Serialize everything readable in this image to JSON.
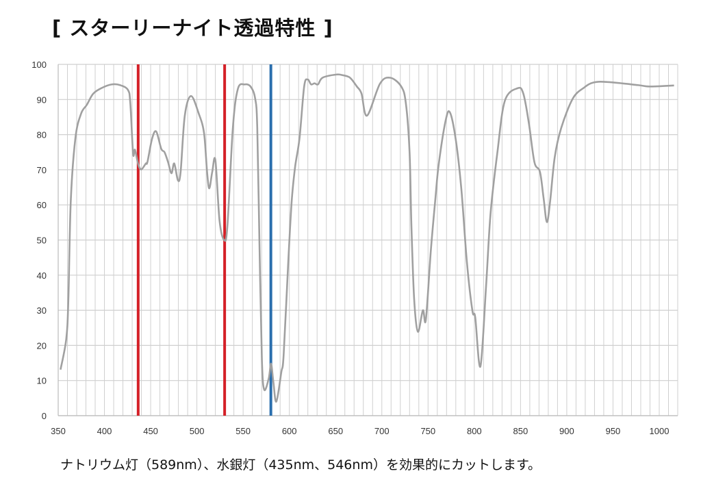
{
  "title": "[ スターリーナイト透過特性 ]",
  "caption": "ナトリウム灯（589nm）、水銀灯（435nm、546nm）を効果的にカットします。",
  "chart_data": {
    "type": "line",
    "title": "[ スターリーナイト透過特性 ]",
    "xlabel": "",
    "ylabel": "",
    "xlim": [
      350,
      1020
    ],
    "ylim": [
      0,
      100
    ],
    "grid": true,
    "x_major_step": 10,
    "x_ticks": [
      350,
      400,
      450,
      500,
      550,
      600,
      650,
      700,
      750,
      800,
      850,
      900,
      950,
      1000
    ],
    "y_ticks": [
      0,
      10,
      20,
      30,
      40,
      50,
      60,
      70,
      80,
      90,
      100
    ],
    "colors": {
      "curve": "#a0a0a0",
      "grid": "#cfcfcf",
      "mercury": "#d42027",
      "sodium": "#2a6ead"
    },
    "markers": [
      {
        "name": "mercury-line-435",
        "x": 436.5,
        "color": "#d42027"
      },
      {
        "name": "mercury-line-546",
        "x": 530,
        "color": "#d42027"
      },
      {
        "name": "sodium-line-589",
        "x": 580,
        "color": "#2a6ead"
      }
    ],
    "series": [
      {
        "name": "transmittance",
        "points": [
          [
            352.5,
            13.1
          ],
          [
            358.7,
            21.8
          ],
          [
            361,
            33
          ],
          [
            363.6,
            61
          ],
          [
            368.6,
            79
          ],
          [
            374.8,
            86
          ],
          [
            381,
            88.5
          ],
          [
            388,
            91.7
          ],
          [
            398,
            93.4
          ],
          [
            408,
            94.3
          ],
          [
            416.8,
            94.1
          ],
          [
            425.5,
            92.7
          ],
          [
            428,
            88.9
          ],
          [
            431,
            74.6
          ],
          [
            433,
            75.7
          ],
          [
            436.6,
            71.5
          ],
          [
            439.9,
            70.1
          ],
          [
            444.8,
            71.8
          ],
          [
            446.5,
            72.2
          ],
          [
            451.5,
            78.8
          ],
          [
            456,
            80.9
          ],
          [
            461.4,
            76
          ],
          [
            465,
            75
          ],
          [
            468.8,
            72.2
          ],
          [
            472.5,
            69
          ],
          [
            475.5,
            71.8
          ],
          [
            479.5,
            67
          ],
          [
            482.4,
            69.4
          ],
          [
            486.9,
            85.4
          ],
          [
            493.6,
            91
          ],
          [
            502,
            86
          ],
          [
            507.7,
            80.5
          ],
          [
            511,
            69.4
          ],
          [
            513.4,
            64.7
          ],
          [
            516.6,
            69.4
          ],
          [
            520,
            72.7
          ],
          [
            524.5,
            55.5
          ],
          [
            529.5,
            50
          ],
          [
            533,
            54
          ],
          [
            538.9,
            81.9
          ],
          [
            544.3,
            93
          ],
          [
            551.7,
            94.3
          ],
          [
            558,
            93.7
          ],
          [
            563,
            90.3
          ],
          [
            565.3,
            81.9
          ],
          [
            567.8,
            47
          ],
          [
            570.3,
            15.9
          ],
          [
            572.8,
            7.4
          ],
          [
            577.7,
            10.6
          ],
          [
            580.2,
            14.8
          ],
          [
            582.7,
            9.6
          ],
          [
            585.9,
            4
          ],
          [
            591.3,
            12.4
          ],
          [
            593.8,
            17.2
          ],
          [
            598.8,
            43.7
          ],
          [
            602.5,
            61
          ],
          [
            606.2,
            70.8
          ],
          [
            611,
            79
          ],
          [
            616,
            93.7
          ],
          [
            619.8,
            95.7
          ],
          [
            623.5,
            94.3
          ],
          [
            627.2,
            94.6
          ],
          [
            631,
            94.3
          ],
          [
            635.9,
            96.2
          ],
          [
            650.7,
            97.1
          ],
          [
            658,
            96.9
          ],
          [
            665.6,
            96.2
          ],
          [
            673,
            93.7
          ],
          [
            678,
            91.7
          ],
          [
            684,
            85.4
          ],
          [
            698,
            94.5
          ],
          [
            709,
            96.2
          ],
          [
            721,
            93.7
          ],
          [
            726,
            88.9
          ],
          [
            730,
            75
          ],
          [
            732,
            54
          ],
          [
            735,
            33
          ],
          [
            739,
            23.9
          ],
          [
            744.4,
            30
          ],
          [
            747.6,
            27.3
          ],
          [
            753,
            47
          ],
          [
            758,
            62
          ],
          [
            761.5,
            71.5
          ],
          [
            769,
            84
          ],
          [
            773.7,
            86.3
          ],
          [
            780,
            78.5
          ],
          [
            786,
            64.5
          ],
          [
            792,
            43.7
          ],
          [
            798,
            29.8
          ],
          [
            801,
            28
          ],
          [
            806.6,
            14
          ],
          [
            812.7,
            36.7
          ],
          [
            817.6,
            57.6
          ],
          [
            825,
            75
          ],
          [
            833,
            89.6
          ],
          [
            846.8,
            93.2
          ],
          [
            853,
            91.7
          ],
          [
            859,
            83.3
          ],
          [
            865,
            72.2
          ],
          [
            871,
            69.4
          ],
          [
            875,
            61.8
          ],
          [
            878.5,
            55.1
          ],
          [
            882,
            61
          ],
          [
            887,
            73.6
          ],
          [
            894,
            81.9
          ],
          [
            906.6,
            90.3
          ],
          [
            918.8,
            93.4
          ],
          [
            928.5,
            94.8
          ],
          [
            943,
            95
          ],
          [
            977,
            94.1
          ],
          [
            989.5,
            93.7
          ],
          [
            1016,
            94
          ]
        ]
      }
    ]
  }
}
